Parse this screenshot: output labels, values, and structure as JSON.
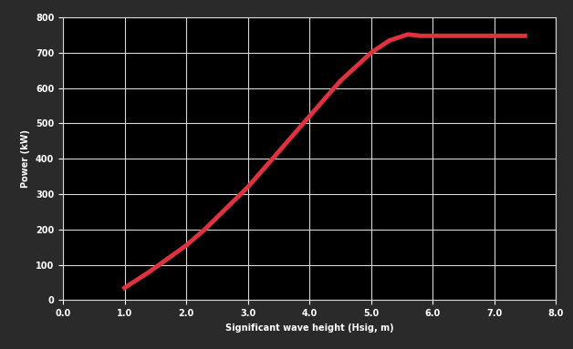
{
  "chart_data": {
    "type": "line",
    "x_label": "Significant wave height (Hsig, m)",
    "y_label": "Power (kW)",
    "x": [
      1.0,
      1.4,
      2.0,
      2.3,
      3.0,
      3.5,
      4.0,
      4.5,
      5.0,
      5.3,
      5.6,
      5.8,
      6.5,
      7.5
    ],
    "values": [
      35,
      80,
      155,
      200,
      320,
      420,
      520,
      620,
      700,
      735,
      752,
      748,
      748,
      748
    ],
    "color": "#e0313e",
    "xlim": [
      0,
      8
    ],
    "ylim": [
      0,
      800
    ],
    "xticks": [
      {
        "value": 0,
        "label": "0.0"
      },
      {
        "value": 1,
        "label": "1.0"
      },
      {
        "value": 2,
        "label": "2.0"
      },
      {
        "value": 3,
        "label": "3.0"
      },
      {
        "value": 4,
        "label": "4.0"
      },
      {
        "value": 5,
        "label": "5.0"
      },
      {
        "value": 6,
        "label": "6.0"
      },
      {
        "value": 7,
        "label": "7.0"
      },
      {
        "value": 8,
        "label": "8.0"
      }
    ],
    "yticks": [
      0,
      100,
      200,
      300,
      400,
      500,
      600,
      700,
      800
    ],
    "grid": true
  }
}
